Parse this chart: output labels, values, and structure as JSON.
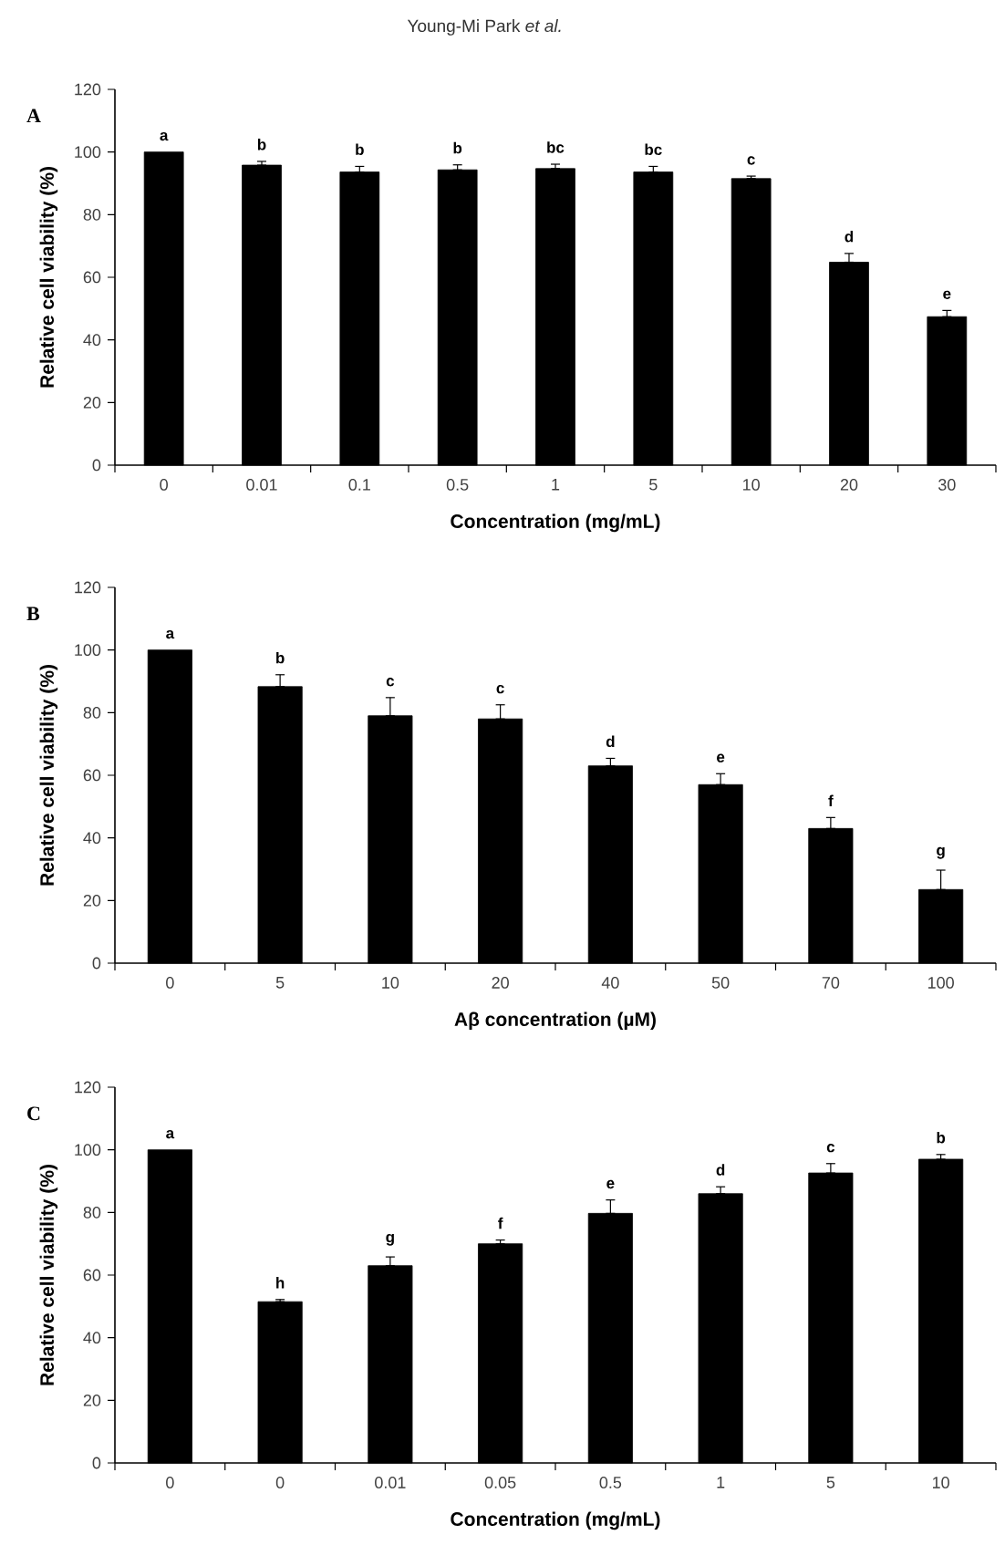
{
  "chart_data": [
    {
      "type": "bar",
      "title": "A",
      "annotations": [
        "Young-Mi Park *et al.*"
      ],
      "xlabel": "Concentration (mg/mL)",
      "ylabel": "Relative cell viability (%)",
      "categories": [
        "0",
        "0.01",
        "0.1",
        "0.5",
        "1",
        "5",
        "10",
        "20",
        "30"
      ],
      "values": [
        100,
        95.8,
        93.6,
        94.3,
        94.7,
        93.6,
        91.5,
        64.8,
        47.4
      ],
      "errors": [
        null,
        [
          95.8,
          97
        ],
        [
          93.6,
          95.4
        ],
        [
          94.3,
          95.9
        ],
        [
          94.7,
          96.1
        ],
        [
          93.6,
          95.4
        ],
        [
          91.5,
          92.3
        ],
        [
          64.8,
          67.6
        ],
        [
          47.4,
          49.4
        ]
      ],
      "value_labels": [
        "a",
        "b",
        "b",
        "b",
        "bc",
        "bc",
        "c",
        "d",
        "e"
      ],
      "color": "#000000",
      "ylim": [
        0,
        120
      ],
      "yticks": [
        0,
        20,
        40,
        60,
        80,
        100,
        120
      ]
    },
    {
      "type": "bar",
      "title": "B",
      "xlabel": "Aβ concentration (µM)",
      "ylabel": "Relative cell viability (%)",
      "categories": [
        "0",
        "5",
        "10",
        "20",
        "40",
        "50",
        "70",
        "100"
      ],
      "values": [
        100,
        88.3,
        79,
        78,
        63,
        57,
        43,
        23.5
      ],
      "errors": [
        null,
        [
          88.3,
          92.1
        ],
        [
          79,
          84.8
        ],
        [
          78,
          82.5
        ],
        [
          63,
          65.4
        ],
        [
          57,
          60.5
        ],
        [
          43,
          46.5
        ],
        [
          23.5,
          29.7
        ]
      ],
      "value_labels": [
        "a",
        "b",
        "c",
        "c",
        "d",
        "e",
        "f",
        "g"
      ],
      "color": "#000000",
      "ylim": [
        0,
        120
      ],
      "yticks": [
        0,
        20,
        40,
        60,
        80,
        100,
        120
      ]
    },
    {
      "type": "bar",
      "title": "C",
      "xlabel": "Concentration (mg/mL)",
      "ylabel": "Relative cell viability (%)",
      "categories": [
        "0",
        "0",
        "0.01",
        "0.05",
        "0.5",
        "1",
        "5",
        "10"
      ],
      "values": [
        100,
        51.5,
        63,
        70,
        79.7,
        86,
        92.6,
        97
      ],
      "errors": [
        null,
        [
          51.5,
          52.2
        ],
        [
          63,
          65.8
        ],
        [
          70,
          71.2
        ],
        [
          79.7,
          84
        ],
        [
          86,
          88.2
        ],
        [
          92.6,
          95.6
        ],
        [
          97,
          98.5
        ]
      ],
      "value_labels": [
        "a",
        "h",
        "g",
        "f",
        "e",
        "d",
        "c",
        "b"
      ],
      "color": "#000000",
      "ylim": [
        0,
        120
      ],
      "yticks": [
        0,
        20,
        40,
        60,
        80,
        100,
        120
      ]
    }
  ]
}
